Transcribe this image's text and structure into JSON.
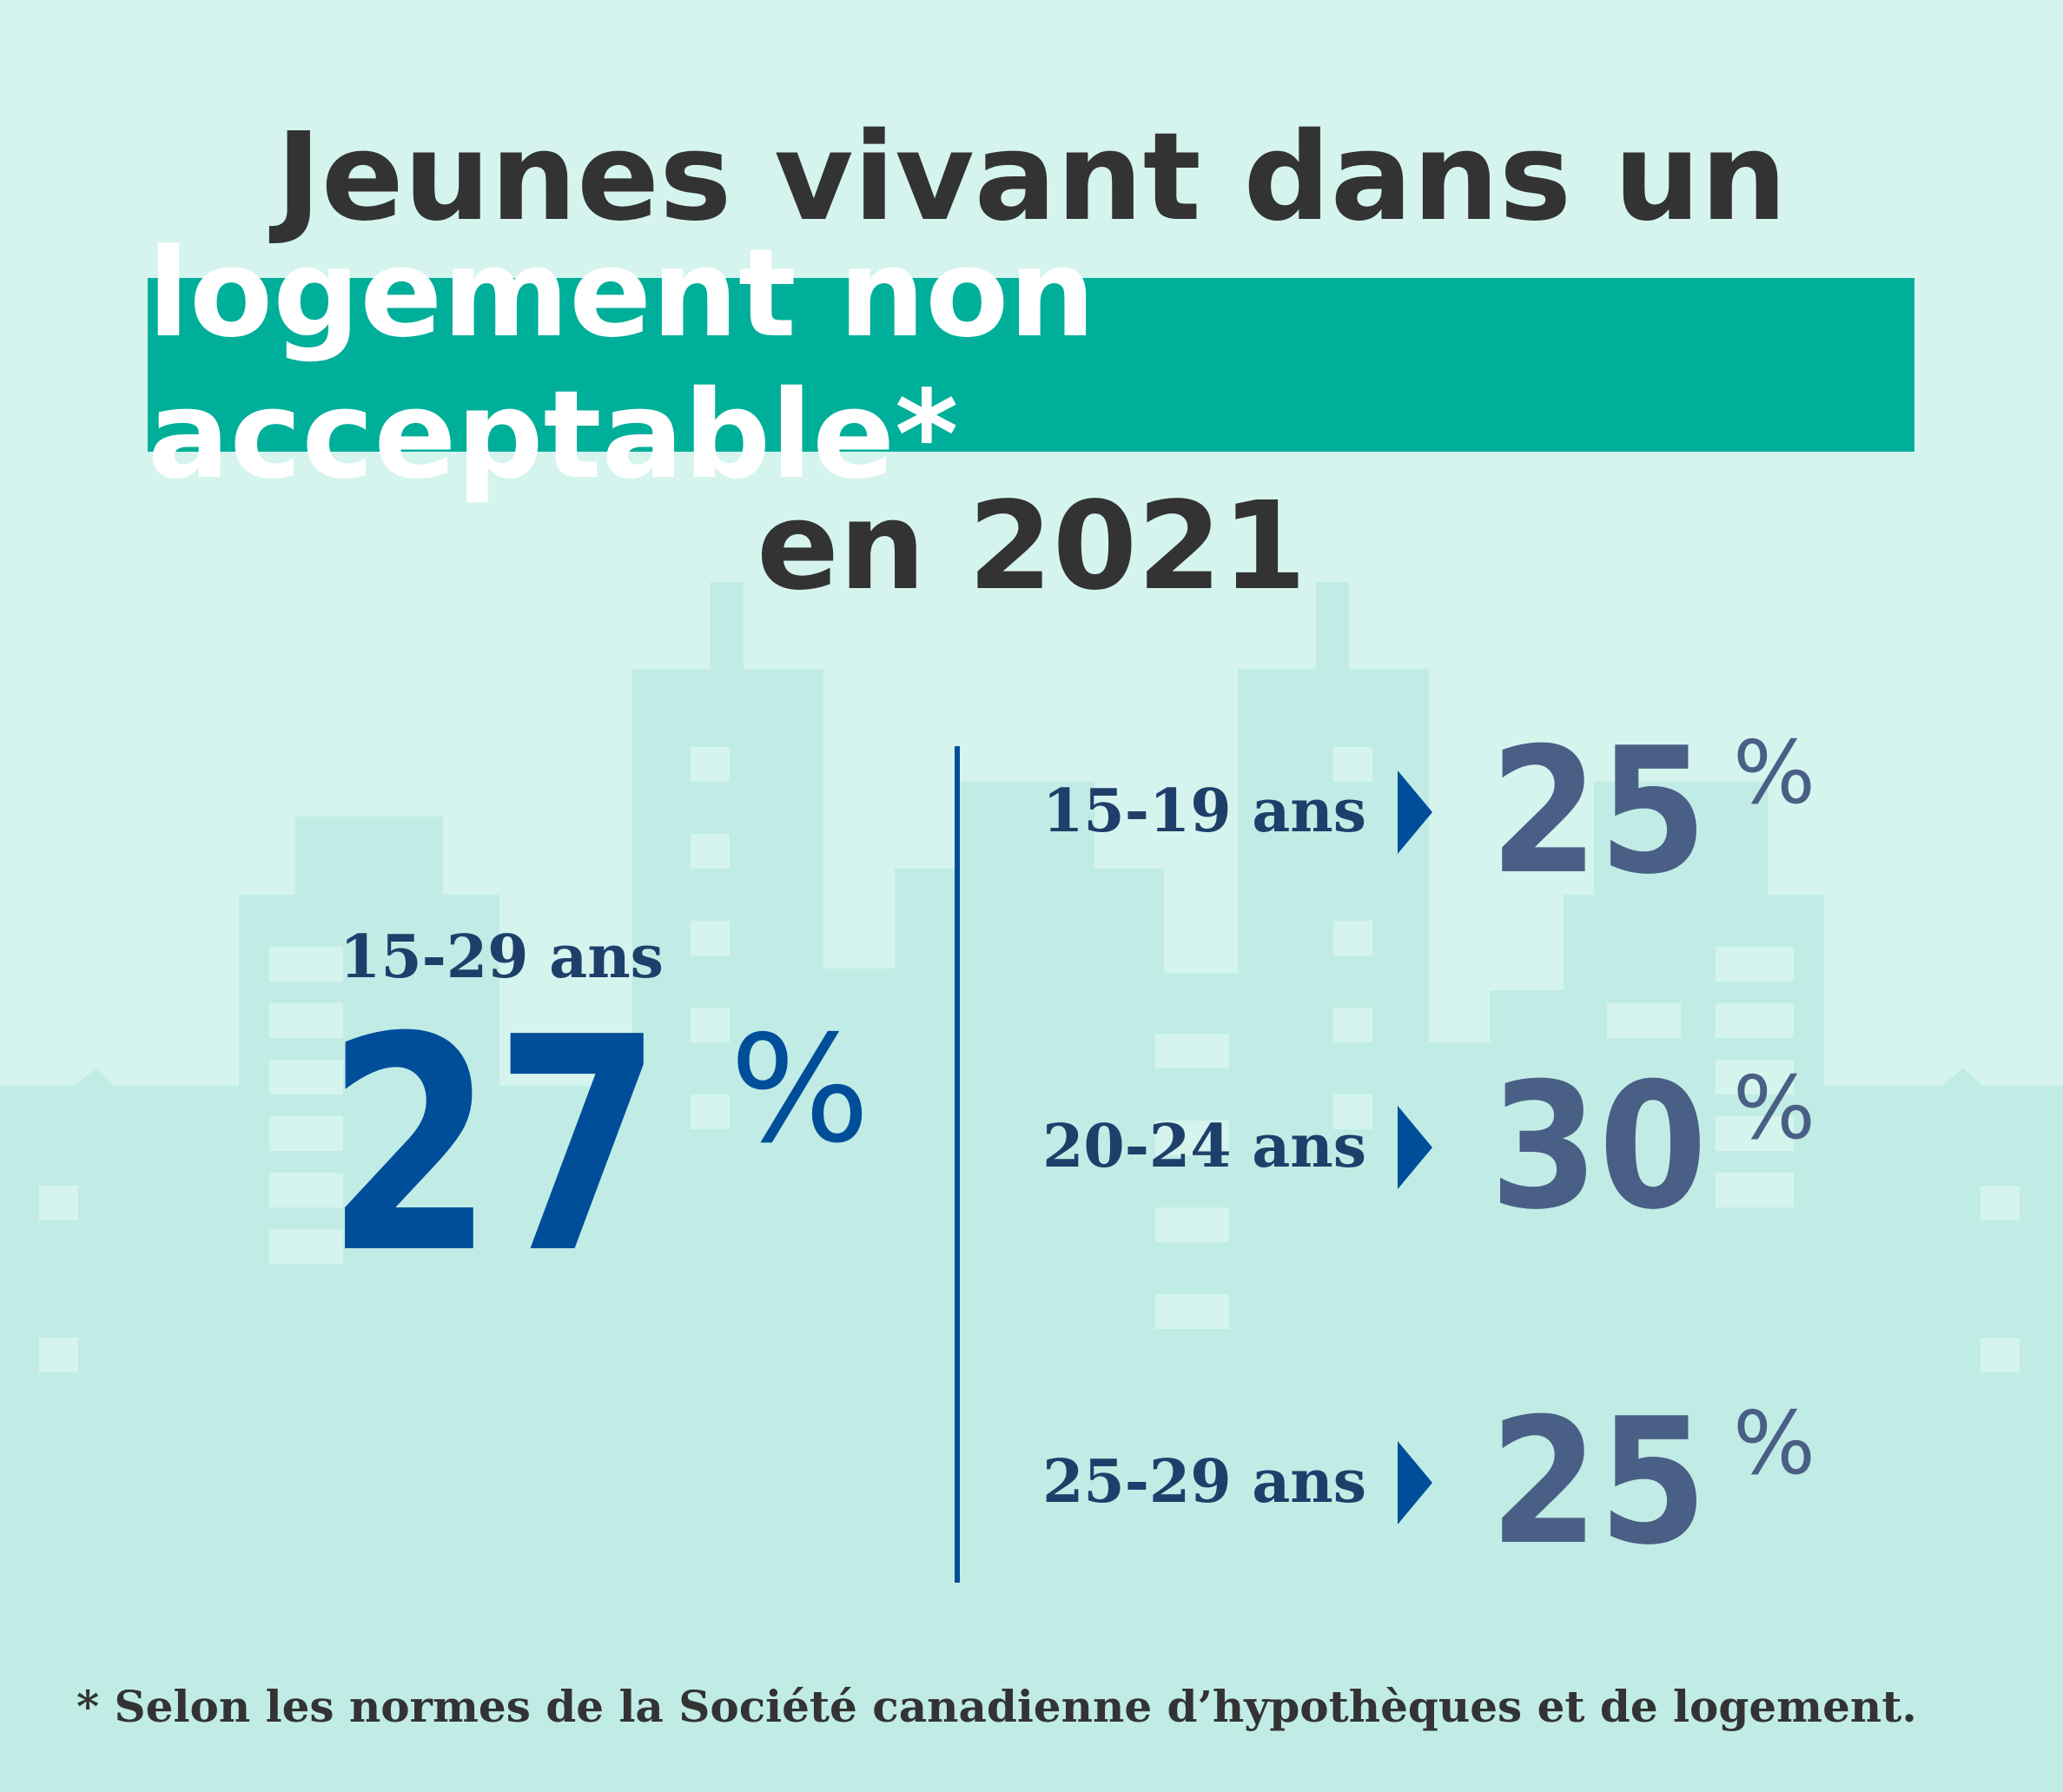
{
  "title": {
    "line1": "Jeunes vivant dans un",
    "line2_highlight": "logement non acceptable*",
    "line3": "en 2021"
  },
  "total": {
    "label": "15-29 ans",
    "value": "27",
    "unit": "%"
  },
  "groups": [
    {
      "label": "15-19 ans",
      "value": "25",
      "unit": "%"
    },
    {
      "label": "20-24 ans",
      "value": "30",
      "unit": "%"
    },
    {
      "label": "25-29 ans",
      "value": "25",
      "unit": "%"
    }
  ],
  "footnote": "* Selon les normes de la Société canadienne d’hypothèques et de logement.",
  "colors": {
    "background": "#d5f4ee",
    "buildings": "#c0ece5",
    "banner": "#00af9a",
    "total_value": "#004e9a",
    "group_value": "#4a5f85",
    "label": "#1f3f6b",
    "divider": "#004e9a"
  }
}
